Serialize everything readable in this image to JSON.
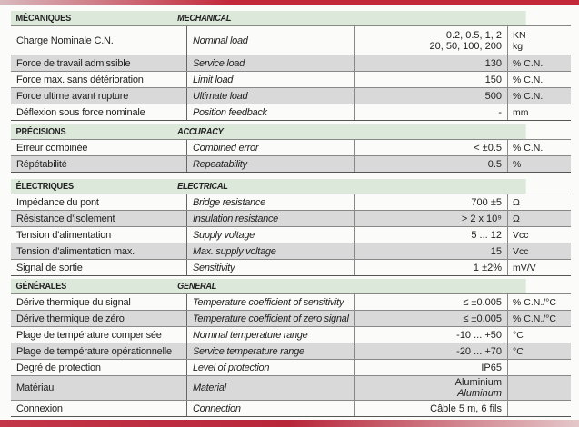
{
  "accent_color": "#c3273a",
  "sections": [
    {
      "fr": "MÉCANIQUES",
      "en": "MECHANICAL",
      "rows": [
        {
          "fr": "Charge Nominale C.N.",
          "en": "Nominal load",
          "value": [
            "0.2, 0.5, 1, 2",
            "20, 50, 100, 200"
          ],
          "unit": [
            "KN",
            "kg"
          ]
        },
        {
          "fr": "Force de travail admissible",
          "en": "Service load",
          "value": [
            "130"
          ],
          "unit": [
            "% C.N."
          ]
        },
        {
          "fr": "Force max. sans détérioration",
          "en": "Limit load",
          "value": [
            "150"
          ],
          "unit": [
            "% C.N."
          ]
        },
        {
          "fr": "Force ultime avant rupture",
          "en": "Ultimate load",
          "value": [
            "500"
          ],
          "unit": [
            "% C.N."
          ]
        },
        {
          "fr": "Déflexion sous force nominale",
          "en": "Position feedback",
          "value": [
            "-"
          ],
          "unit": [
            "mm"
          ]
        }
      ]
    },
    {
      "fr": "PRÉCISIONS",
      "en": "ACCURACY",
      "rows": [
        {
          "fr": "Erreur combinée",
          "en": "Combined error",
          "value": [
            "< ±0.5"
          ],
          "unit": [
            "% C.N."
          ]
        },
        {
          "fr": "Répétabilité",
          "en": "Repeatability",
          "value": [
            "0.5"
          ],
          "unit": [
            "%"
          ]
        }
      ]
    },
    {
      "fr": "ÉLECTRIQUES",
      "en": "ELECTRICAL",
      "rows": [
        {
          "fr": "Impédance du pont",
          "en": "Bridge resistance",
          "value": [
            "700 ±5"
          ],
          "unit": [
            "Ω"
          ]
        },
        {
          "fr": "Résistance d'isolement",
          "en": "Insulation resistance",
          "value": [
            "> 2 x 10⁹"
          ],
          "unit": [
            "Ω"
          ]
        },
        {
          "fr": "Tension d'alimentation",
          "en": "Supply voltage",
          "value": [
            "5 ... 12"
          ],
          "unit": [
            "Vcc"
          ]
        },
        {
          "fr": "Tension d'alimentation max.",
          "en": "Max. supply voltage",
          "value": [
            "15"
          ],
          "unit": [
            "Vcc"
          ]
        },
        {
          "fr": "Signal de sortie",
          "en": "Sensitivity",
          "value": [
            "1 ±2%"
          ],
          "unit": [
            "mV/V"
          ]
        }
      ]
    },
    {
      "fr": "GÉNÉRALES",
      "en": "GENERAL",
      "rows": [
        {
          "fr": "Dérive thermique du signal",
          "en": "Temperature coefficient of sensitivity",
          "value": [
            "≤ ±0.005"
          ],
          "unit": [
            "% C.N./°C"
          ]
        },
        {
          "fr": "Dérive thermique de zéro",
          "en": "Temperature coefficient of zero signal",
          "value": [
            "≤ ±0.005"
          ],
          "unit": [
            "% C.N./°C"
          ]
        },
        {
          "fr": "Plage de température compensée",
          "en": "Nominal temperature range",
          "value": [
            "-10 ... +50"
          ],
          "unit": [
            "°C"
          ]
        },
        {
          "fr": "Plage de température opérationnelle",
          "en": "Service temperature range",
          "value": [
            "-20 ... +70"
          ],
          "unit": [
            "°C"
          ]
        },
        {
          "fr": "Degré de protection",
          "en": "Level of protection",
          "value": [
            "IP65"
          ],
          "unit": []
        },
        {
          "fr": "Matériau",
          "en": "Material",
          "value": [
            "Aluminium",
            "Aluminum"
          ],
          "unit": []
        },
        {
          "fr": "Connexion",
          "en": "Connection",
          "value": [
            "Câble 5 m, 6 fils"
          ],
          "unit": []
        }
      ]
    }
  ]
}
